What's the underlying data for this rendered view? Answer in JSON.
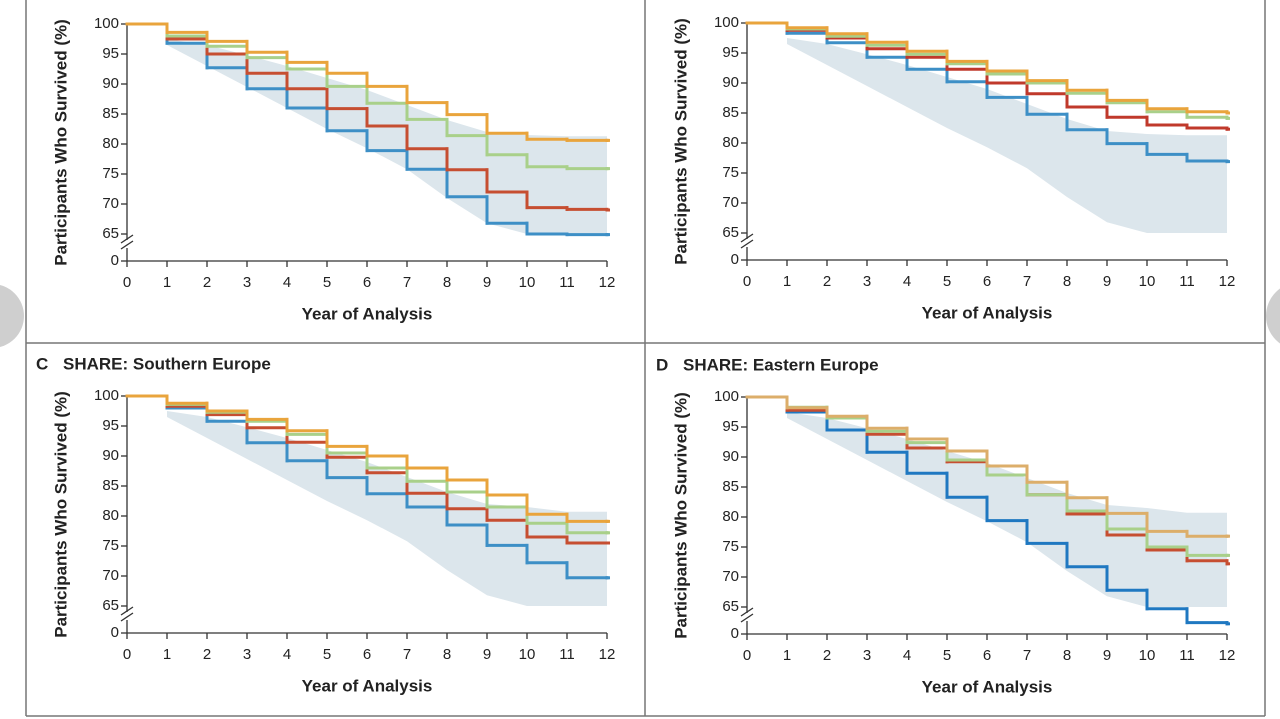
{
  "chart_data": [
    {
      "type": "line",
      "step": true,
      "x": [
        0,
        1,
        2,
        3,
        4,
        5,
        6,
        7,
        8,
        9,
        10,
        11,
        12
      ],
      "xlim": [
        0,
        12
      ],
      "xticks": [
        0,
        1,
        2,
        3,
        4,
        5,
        6,
        7,
        8,
        9,
        10,
        11,
        12
      ],
      "ylim": [
        0,
        100
      ],
      "axis_break": [
        0,
        65
      ],
      "yticks": [
        0,
        65,
        70,
        75,
        80,
        85,
        90,
        95,
        100
      ],
      "x_label": "Year of Analysis",
      "y_label": "Participants Who Survived (%)",
      "band": {
        "color": "#dce6ec",
        "x": [
          1,
          2,
          3,
          4,
          5,
          6,
          7,
          8,
          9,
          10,
          11,
          12
        ],
        "lower": [
          96.5,
          93,
          89.5,
          86,
          82.5,
          79.3,
          75.8,
          71,
          66.8,
          65,
          65,
          65
        ],
        "upper": [
          97.5,
          96.5,
          94.8,
          93,
          91,
          89,
          86.5,
          84,
          82,
          81.5,
          81.3,
          81.3
        ]
      },
      "series": [
        {
          "color": "#3d8fc6",
          "values": [
            100,
            96.8,
            92.7,
            89.2,
            86,
            82.2,
            78.9,
            75.8,
            71.2,
            66.8,
            65,
            64.9,
            64.9
          ]
        },
        {
          "color": "#c64e31",
          "values": [
            100,
            97.5,
            95,
            91.8,
            89.2,
            85.9,
            83,
            79.2,
            75.7,
            72,
            69.4,
            69.1,
            69
          ]
        },
        {
          "color": "#a9d08a",
          "values": [
            100,
            98,
            96.3,
            94.4,
            92.5,
            89.6,
            86.8,
            84.1,
            81.4,
            78.2,
            76.2,
            75.9,
            75.9
          ]
        },
        {
          "color": "#e9a43c",
          "values": [
            100,
            98.6,
            97.1,
            95.3,
            93.6,
            91.8,
            89.6,
            86.9,
            84.9,
            81.8,
            80.8,
            80.6,
            80.6
          ]
        }
      ]
    },
    {
      "type": "line",
      "step": true,
      "x": [
        0,
        1,
        2,
        3,
        4,
        5,
        6,
        7,
        8,
        9,
        10,
        11,
        12
      ],
      "xlim": [
        0,
        12
      ],
      "xticks": [
        0,
        1,
        2,
        3,
        4,
        5,
        6,
        7,
        8,
        9,
        10,
        11,
        12
      ],
      "ylim": [
        0,
        100
      ],
      "axis_break": [
        0,
        65
      ],
      "yticks": [
        0,
        65,
        70,
        75,
        80,
        85,
        90,
        95,
        100
      ],
      "x_label": "Year of Analysis",
      "y_label": "Participants Who Survived (%)",
      "band": {
        "color": "#dce6ec",
        "x": [
          1,
          2,
          3,
          4,
          5,
          6,
          7,
          8,
          9,
          10,
          11,
          12
        ],
        "lower": [
          96.5,
          93,
          89.5,
          86,
          82.5,
          79.3,
          75.8,
          71,
          66.8,
          65,
          65,
          65
        ],
        "upper": [
          97.5,
          96.5,
          94.8,
          93,
          91,
          89,
          86.5,
          84,
          82,
          81.5,
          81.3,
          81.3
        ]
      },
      "series": [
        {
          "color": "#3d8fc6",
          "values": [
            100,
            98.3,
            96.7,
            94.3,
            92.3,
            90.2,
            87.6,
            84.8,
            82.2,
            79.9,
            78.1,
            77,
            76.9
          ]
        },
        {
          "color": "#c0392b",
          "values": [
            100,
            98.8,
            97.5,
            95.7,
            94.3,
            92.3,
            90,
            88.2,
            86,
            84.3,
            83,
            82.5,
            82.3
          ]
        },
        {
          "color": "#a9d08a",
          "values": [
            100,
            99,
            97.8,
            96.3,
            94.8,
            93.2,
            91.5,
            90,
            88.3,
            86.7,
            85.2,
            84.3,
            84.1
          ]
        },
        {
          "color": "#e9a43c",
          "values": [
            100,
            99.2,
            98.2,
            96.8,
            95.3,
            93.6,
            92,
            90.4,
            88.8,
            87.1,
            85.7,
            85.2,
            85
          ]
        }
      ]
    },
    {
      "type": "line",
      "step": true,
      "panel": "C",
      "title": "SHARE: Southern Europe",
      "x": [
        0,
        1,
        2,
        3,
        4,
        5,
        6,
        7,
        8,
        9,
        10,
        11,
        12
      ],
      "xlim": [
        0,
        12
      ],
      "xticks": [
        0,
        1,
        2,
        3,
        4,
        5,
        6,
        7,
        8,
        9,
        10,
        11,
        12
      ],
      "ylim": [
        0,
        100
      ],
      "axis_break": [
        0,
        65
      ],
      "yticks": [
        0,
        65,
        70,
        75,
        80,
        85,
        90,
        95,
        100
      ],
      "x_label": "Year of Analysis",
      "y_label": "Participants Who Survived (%)",
      "band": {
        "color": "#dce6ec",
        "x": [
          1,
          2,
          3,
          4,
          5,
          6,
          7,
          8,
          9,
          10,
          11,
          12
        ],
        "lower": [
          96.5,
          93,
          89.5,
          86,
          82.5,
          79.3,
          75.8,
          71,
          66.8,
          65,
          65,
          65
        ],
        "upper": [
          97.5,
          96.5,
          94.8,
          93,
          91,
          89,
          86.5,
          84,
          82,
          81.5,
          80.7,
          80.7
        ]
      },
      "series": [
        {
          "color": "#3d8fc6",
          "values": [
            100,
            98,
            95.8,
            92.2,
            89.2,
            86.4,
            83.7,
            81.5,
            78.5,
            75.1,
            72.2,
            69.7,
            69.7
          ]
        },
        {
          "color": "#c64e31",
          "values": [
            100,
            98.3,
            96.9,
            94.7,
            92.3,
            89.8,
            87.2,
            83.8,
            81.2,
            79.3,
            76.5,
            75.5,
            75.5
          ]
        },
        {
          "color": "#a9d08a",
          "values": [
            100,
            98.6,
            97.3,
            95.8,
            93.6,
            90.5,
            88,
            85.8,
            84,
            81.5,
            78.8,
            77.2,
            77.2
          ]
        },
        {
          "color": "#e9a43c",
          "values": [
            100,
            98.8,
            97.5,
            96.1,
            94.2,
            91.6,
            90,
            88,
            86,
            83.5,
            80.3,
            79.1,
            79.1
          ]
        }
      ]
    },
    {
      "type": "line",
      "step": true,
      "panel": "D",
      "title": "SHARE: Eastern Europe",
      "x": [
        0,
        1,
        2,
        3,
        4,
        5,
        6,
        7,
        8,
        9,
        10,
        11,
        12
      ],
      "xlim": [
        0,
        12
      ],
      "xticks": [
        0,
        1,
        2,
        3,
        4,
        5,
        6,
        7,
        8,
        9,
        10,
        11,
        12
      ],
      "ylim": [
        0,
        100
      ],
      "axis_break": [
        0,
        65
      ],
      "yticks": [
        0,
        65,
        70,
        75,
        80,
        85,
        90,
        95,
        100
      ],
      "x_label": "Year of Analysis",
      "y_label": "Participants Who Survived (%)",
      "band": {
        "color": "#dce6ec",
        "x": [
          1,
          2,
          3,
          4,
          5,
          6,
          7,
          8,
          9,
          10,
          11,
          12
        ],
        "lower": [
          96.5,
          93,
          89.5,
          86,
          82.5,
          79.3,
          75.8,
          71,
          66.8,
          65,
          65,
          65
        ],
        "upper": [
          97.5,
          96.5,
          94.8,
          93,
          91,
          89,
          86.5,
          84,
          82,
          81.5,
          80.7,
          80.7
        ]
      },
      "series": [
        {
          "color": "#1f78c1",
          "values": [
            100,
            97.5,
            94.5,
            90.8,
            87.3,
            83.3,
            79.4,
            75.6,
            71.7,
            67.8,
            64.7,
            62.4,
            62.2
          ]
        },
        {
          "color": "#c64e31",
          "values": [
            100,
            97.8,
            96.5,
            93.8,
            91.5,
            89.2,
            87,
            83.7,
            80.5,
            77,
            74.5,
            72.7,
            72.2
          ]
        },
        {
          "color": "#a9d08a",
          "values": [
            100,
            98.3,
            96.5,
            94.3,
            92.4,
            89.5,
            87,
            83.7,
            81,
            78,
            75,
            73.6,
            73.6
          ]
        },
        {
          "color": "#dcae6a",
          "values": [
            100,
            98.2,
            96.8,
            94.8,
            93,
            91,
            88.5,
            85.8,
            83.2,
            80.6,
            77.6,
            76.8,
            76.8
          ]
        }
      ]
    }
  ]
}
